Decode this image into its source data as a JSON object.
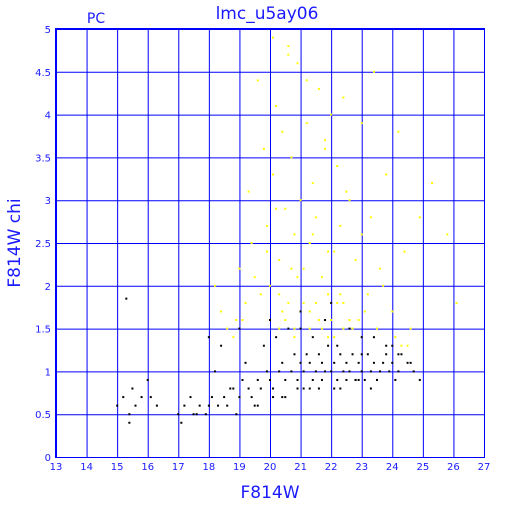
{
  "chart_data": {
    "type": "scatter",
    "title": "lmc_u5ay06",
    "corner_label": "PC",
    "xlabel": "F814W",
    "ylabel": "F814W chi",
    "xlim": [
      13,
      27
    ],
    "ylim": [
      0,
      5
    ],
    "xticks": [
      "13",
      "14",
      "15",
      "16",
      "17",
      "18",
      "19",
      "20",
      "21",
      "22",
      "23",
      "24",
      "25",
      "26",
      "27"
    ],
    "yticks": [
      "0",
      "0.5",
      "1",
      "1.5",
      "2",
      "2.5",
      "3",
      "3.5",
      "4",
      "4.5",
      "5"
    ],
    "grid": true,
    "colors": {
      "axes": "#0000ff",
      "grid": "#0000ff",
      "text": "#1a1aff",
      "rejected": "#ffff00",
      "accepted": "#000000"
    },
    "series": [
      {
        "color": "#ffff00",
        "x": [
          18.2,
          18.4,
          18.9,
          19.3,
          19.6,
          19.8,
          19.9,
          20.0,
          20.1,
          20.2,
          20.3,
          20.4,
          20.5,
          20.6,
          20.6,
          20.7,
          20.8,
          20.9,
          21.0,
          21.1,
          21.2,
          21.3,
          21.4,
          21.5,
          21.6,
          21.7,
          21.8,
          21.9,
          22.0,
          22.1,
          22.2,
          22.3,
          22.4,
          22.6,
          22.8,
          23.0,
          23.2,
          23.4,
          23.6,
          23.8,
          24.0,
          24.2,
          24.4,
          24.6,
          24.9,
          25.3,
          25.8,
          26.1,
          20.3,
          20.9,
          21.3,
          21.8,
          22.2,
          22.7,
          23.1,
          20.5,
          21.0,
          21.5,
          22.0,
          22.4,
          20.8,
          21.6,
          22.1,
          19.4,
          19.7,
          20.0,
          20.2,
          20.4,
          20.7,
          21.1,
          21.4,
          21.7,
          21.9,
          22.3,
          22.5,
          22.9,
          23.3,
          23.7,
          24.1,
          24.5,
          20.1,
          20.6,
          21.2,
          21.8,
          22.4,
          23.0,
          19.2,
          19.5,
          19.9,
          20.3,
          20.8,
          21.3,
          21.9,
          22.6,
          23.5,
          24.3,
          18.6,
          18.8,
          19.0,
          19.1
        ],
        "y": [
          2.0,
          1.7,
          1.6,
          3.1,
          4.4,
          3.6,
          2.7,
          2.0,
          3.3,
          4.1,
          2.3,
          3.8,
          2.9,
          4.8,
          1.8,
          3.5,
          2.6,
          4.6,
          3.0,
          2.2,
          3.9,
          2.5,
          3.2,
          2.8,
          4.3,
          2.1,
          3.6,
          1.9,
          4.0,
          2.4,
          3.4,
          2.7,
          1.8,
          3.0,
          2.3,
          2.6,
          1.9,
          4.5,
          2.2,
          3.3,
          1.7,
          3.8,
          2.4,
          1.5,
          2.8,
          3.2,
          2.6,
          1.8,
          1.9,
          2.1,
          1.7,
          1.6,
          1.8,
          1.5,
          1.7,
          1.6,
          1.7,
          1.8,
          1.6,
          1.5,
          1.5,
          1.6,
          1.4,
          2.5,
          1.9,
          1.6,
          2.9,
          1.7,
          2.2,
          1.8,
          2.6,
          1.5,
          2.4,
          1.9,
          3.1,
          1.6,
          2.8,
          2.0,
          1.4,
          1.3,
          4.9,
          4.7,
          4.4,
          3.7,
          4.2,
          3.9,
          1.8,
          2.1,
          2.4,
          1.5,
          1.4,
          1.5,
          1.4,
          1.6,
          1.5,
          1.3,
          1.5,
          1.4,
          2.2,
          1.6
        ]
      },
      {
        "color": "#000000",
        "x": [
          15.0,
          15.2,
          15.4,
          15.5,
          15.6,
          15.8,
          16.0,
          16.3,
          17.0,
          17.2,
          17.4,
          17.5,
          17.7,
          17.9,
          18.0,
          18.1,
          18.3,
          18.5,
          18.6,
          18.8,
          19.0,
          19.1,
          19.3,
          19.4,
          19.6,
          19.7,
          19.9,
          20.0,
          20.1,
          20.3,
          20.4,
          20.5,
          20.7,
          20.8,
          20.9,
          21.0,
          21.1,
          21.2,
          21.3,
          21.4,
          21.5,
          21.6,
          21.7,
          21.8,
          21.9,
          22.0,
          22.1,
          22.2,
          22.3,
          22.4,
          22.5,
          22.6,
          22.7,
          22.8,
          22.9,
          23.0,
          23.1,
          23.2,
          23.3,
          23.4,
          23.5,
          23.6,
          23.7,
          23.8,
          23.9,
          24.0,
          24.1,
          24.2,
          24.3,
          24.5,
          24.7,
          24.9,
          15.3,
          16.1,
          17.1,
          17.6,
          18.2,
          18.4,
          18.7,
          18.9,
          19.2,
          19.5,
          19.8,
          20.2,
          20.6,
          21.0,
          21.4,
          21.8,
          22.2,
          22.6,
          23.0,
          23.4,
          23.8,
          24.2,
          24.6,
          15.4,
          18.0,
          19.0,
          20.0,
          21.0,
          22.0,
          23.0,
          24.0,
          20.4,
          20.9,
          21.3,
          21.7,
          22.1,
          22.5,
          22.9,
          23.3,
          19.6,
          20.1,
          20.5,
          21.1,
          21.6,
          22.3,
          22.8,
          23.5
        ],
        "y": [
          0.6,
          0.7,
          0.5,
          0.8,
          0.6,
          0.7,
          0.9,
          0.6,
          0.5,
          0.6,
          0.7,
          0.5,
          0.6,
          0.5,
          0.6,
          0.7,
          0.6,
          0.7,
          0.6,
          0.8,
          0.7,
          0.9,
          0.8,
          0.7,
          0.9,
          0.8,
          1.0,
          0.9,
          0.8,
          1.0,
          1.1,
          0.9,
          1.0,
          1.2,
          0.9,
          1.1,
          1.0,
          1.2,
          1.1,
          0.9,
          1.0,
          1.2,
          1.1,
          1.0,
          1.3,
          1.0,
          1.1,
          0.9,
          1.2,
          1.0,
          1.1,
          1.0,
          1.2,
          0.9,
          1.1,
          1.0,
          0.9,
          1.2,
          1.0,
          1.1,
          0.9,
          1.0,
          1.1,
          1.2,
          1.0,
          1.1,
          0.9,
          1.0,
          1.2,
          1.1,
          1.0,
          0.9,
          1.85,
          0.7,
          0.4,
          0.5,
          1.0,
          1.3,
          0.8,
          0.5,
          1.1,
          0.6,
          1.3,
          1.4,
          1.5,
          1.7,
          1.4,
          1.6,
          1.3,
          1.5,
          1.2,
          1.4,
          1.3,
          1.2,
          1.1,
          0.4,
          1.4,
          1.5,
          1.6,
          1.5,
          1.8,
          1.4,
          1.3,
          0.7,
          0.8,
          0.8,
          0.9,
          0.8,
          0.9,
          0.9,
          0.8,
          0.6,
          0.7,
          0.7,
          0.8,
          0.8,
          0.8,
          0.9,
          0.9
        ]
      }
    ]
  }
}
